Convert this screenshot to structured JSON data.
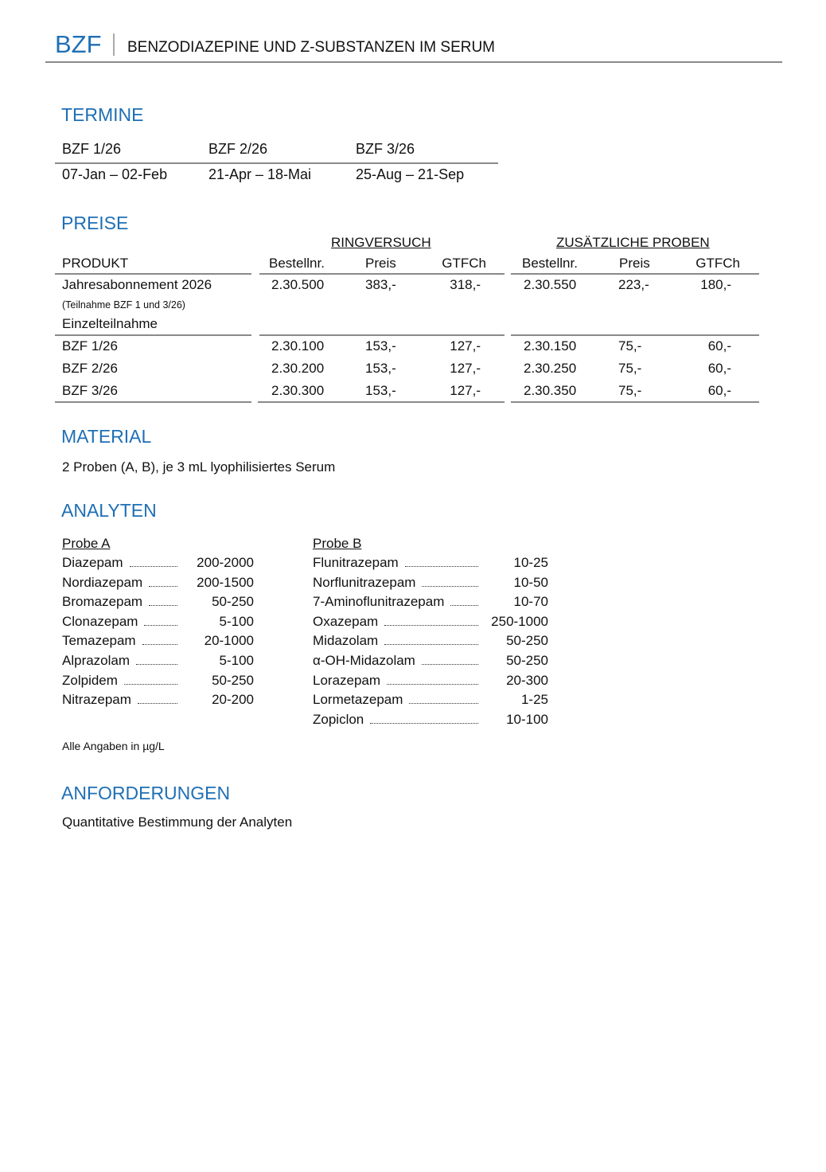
{
  "header": {
    "code": "BZF",
    "title": "BENZODIAZEPINE UND Z-SUBSTANZEN IM SERUM",
    "accent_color": "#1f6fb5"
  },
  "termine": {
    "heading": "TERMINE",
    "rounds": [
      {
        "name": "BZF 1/26",
        "dates": "07-Jan – 02-Feb"
      },
      {
        "name": "BZF 2/26",
        "dates": "21-Apr – 18-Mai"
      },
      {
        "name": "BZF 3/26",
        "dates": "25-Aug – 21-Sep"
      }
    ]
  },
  "preise": {
    "heading": "PREISE",
    "group_ringversuch": "RINGVERSUCH",
    "group_zusaetzlich": "ZUSÄTZLICHE PROBEN",
    "columns": [
      "PRODUKT",
      "Bestellnr.",
      "Preis",
      "GTFCh",
      "Bestellnr.",
      "Preis",
      "GTFCh"
    ],
    "jahres": {
      "name": "Jahresabonnement 2026",
      "note": "(Teilnahme BZF 1 und 3/26)",
      "values": [
        "2.30.500",
        "383,-",
        "318,-",
        "2.30.550",
        "223,-",
        "180,-"
      ]
    },
    "einzel_label": "Einzelteilnahme",
    "rows": [
      {
        "name": "BZF 1/26",
        "values": [
          "2.30.100",
          "153,-",
          "127,-",
          "2.30.150",
          "75,-",
          "60,-"
        ]
      },
      {
        "name": "BZF 2/26",
        "values": [
          "2.30.200",
          "153,-",
          "127,-",
          "2.30.250",
          "75,-",
          "60,-"
        ]
      },
      {
        "name": "BZF 3/26",
        "values": [
          "2.30.300",
          "153,-",
          "127,-",
          "2.30.350",
          "75,-",
          "60,-"
        ]
      }
    ]
  },
  "material": {
    "heading": "MATERIAL",
    "text": "2 Proben (A, B), je 3 mL lyophilisiertes Serum"
  },
  "analyten": {
    "heading": "ANALYTEN",
    "probe_a": {
      "label": "Probe A",
      "items": [
        {
          "name": "Diazepam",
          "range": "200-2000"
        },
        {
          "name": "Nordiazepam",
          "range": "200-1500"
        },
        {
          "name": "Bromazepam",
          "range": "50-250"
        },
        {
          "name": "Clonazepam",
          "range": "5-100"
        },
        {
          "name": "Temazepam",
          "range": "20-1000"
        },
        {
          "name": "Alprazolam",
          "range": "5-100"
        },
        {
          "name": "Zolpidem",
          "range": "50-250"
        },
        {
          "name": "Nitrazepam",
          "range": "20-200"
        }
      ]
    },
    "probe_b": {
      "label": "Probe B",
      "items": [
        {
          "name": "Flunitrazepam",
          "range": "10-25"
        },
        {
          "name": "Norflunitrazepam",
          "range": "10-50"
        },
        {
          "name": "7-Aminoflunitrazepam",
          "range": "10-70"
        },
        {
          "name": "Oxazepam",
          "range": "250-1000"
        },
        {
          "name": "Midazolam",
          "range": "50-250"
        },
        {
          "name": "α-OH-Midazolam",
          "range": "50-250"
        },
        {
          "name": "Lorazepam",
          "range": "20-300"
        },
        {
          "name": "Lormetazepam",
          "range": "1-25"
        },
        {
          "name": "Zopiclon",
          "range": "10-100"
        }
      ]
    },
    "footnote": "Alle Angaben in µg/L"
  },
  "anforderungen": {
    "heading": "ANFORDERUNGEN",
    "text": "Quantitative Bestimmung der Analyten"
  }
}
